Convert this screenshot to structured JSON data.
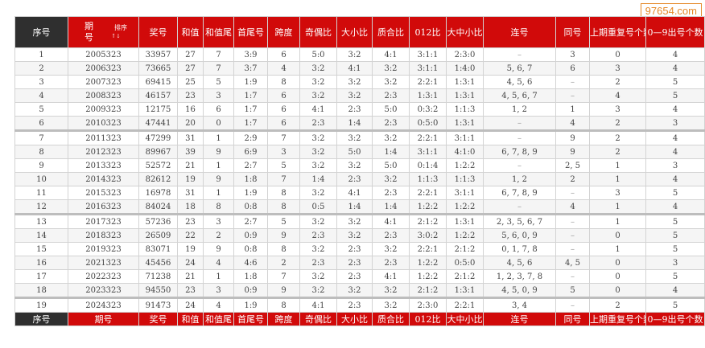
{
  "watermark": "97654.com",
  "headers": {
    "seq": "序号",
    "issue_top": "期",
    "issue_bottom": "号",
    "sort_label": "排序",
    "sort_arrow": "↑↓",
    "number": "奖号",
    "sum": "和值",
    "sum_tail": "和值尾",
    "first_last": "首尾号",
    "span": "跨度",
    "odd_even": "奇偶比",
    "big_small": "大小比",
    "prime_comp": "质合比",
    "ratio012": "012比",
    "big_mid_small": "大中小比",
    "consecutive": "连号",
    "same": "同号",
    "repeat_prev": "上期重复号个数",
    "count_0_9": "0—9出号个数"
  },
  "footers": {
    "seq": "序号",
    "issue": "期号",
    "number": "奖号",
    "sum": "和值",
    "sum_tail": "和值尾",
    "first_last": "首尾号",
    "span": "跨度",
    "odd_even": "奇偶比",
    "big_small": "大小比",
    "prime_comp": "质合比",
    "ratio012": "012比",
    "big_mid_small": "大中小比",
    "consecutive": "连号",
    "same": "同号",
    "repeat_prev": "上期重复号个数",
    "count_0_9": "0—9出号个数"
  },
  "rows": [
    {
      "seq": "1",
      "issue": "2005323",
      "number": "33957",
      "sum": "27",
      "tail": "7",
      "fl": "3:9",
      "span": "6",
      "oe": "5:0",
      "bs": "3:2",
      "pc": "4:1",
      "r012": "3:1:1",
      "bms": "2:3:0",
      "cons": "–",
      "same": "3",
      "rep": "0",
      "cnt": "4"
    },
    {
      "seq": "2",
      "issue": "2006323",
      "number": "73665",
      "sum": "27",
      "tail": "7",
      "fl": "3:7",
      "span": "4",
      "oe": "3:2",
      "bs": "4:1",
      "pc": "3:2",
      "r012": "3:1:1",
      "bms": "1:4:0",
      "cons": "5, 6, 7",
      "same": "6",
      "rep": "3",
      "cnt": "4"
    },
    {
      "seq": "3",
      "issue": "2007323",
      "number": "69415",
      "sum": "25",
      "tail": "5",
      "fl": "1:9",
      "span": "8",
      "oe": "3:2",
      "bs": "3:2",
      "pc": "3:2",
      "r012": "2:2:1",
      "bms": "1:3:1",
      "cons": "4, 5, 6",
      "same": "–",
      "rep": "2",
      "cnt": "5"
    },
    {
      "seq": "4",
      "issue": "2008323",
      "number": "46157",
      "sum": "23",
      "tail": "3",
      "fl": "1:7",
      "span": "6",
      "oe": "3:2",
      "bs": "3:2",
      "pc": "2:3",
      "r012": "1:3:1",
      "bms": "1:3:1",
      "cons": "4, 5, 6, 7",
      "same": "–",
      "rep": "4",
      "cnt": "5"
    },
    {
      "seq": "5",
      "issue": "2009323",
      "number": "12175",
      "sum": "16",
      "tail": "6",
      "fl": "1:7",
      "span": "6",
      "oe": "4:1",
      "bs": "2:3",
      "pc": "5:0",
      "r012": "0:3:2",
      "bms": "1:1:3",
      "cons": "1, 2",
      "same": "1",
      "rep": "3",
      "cnt": "4"
    },
    {
      "seq": "6",
      "issue": "2010323",
      "number": "47441",
      "sum": "20",
      "tail": "0",
      "fl": "1:7",
      "span": "6",
      "oe": "2:3",
      "bs": "1:4",
      "pc": "2:3",
      "r012": "0:5:0",
      "bms": "1:3:1",
      "cons": "–",
      "same": "4",
      "rep": "2",
      "cnt": "3"
    },
    {
      "seq": "7",
      "issue": "2011323",
      "number": "47299",
      "sum": "31",
      "tail": "1",
      "fl": "2:9",
      "span": "7",
      "oe": "3:2",
      "bs": "3:2",
      "pc": "3:2",
      "r012": "2:2:1",
      "bms": "3:1:1",
      "cons": "–",
      "same": "9",
      "rep": "2",
      "cnt": "4",
      "group": true
    },
    {
      "seq": "8",
      "issue": "2012323",
      "number": "89967",
      "sum": "39",
      "tail": "9",
      "fl": "6:9",
      "span": "3",
      "oe": "3:2",
      "bs": "5:0",
      "pc": "1:4",
      "r012": "3:1:1",
      "bms": "4:1:0",
      "cons": "6, 7, 8, 9",
      "same": "9",
      "rep": "2",
      "cnt": "4"
    },
    {
      "seq": "9",
      "issue": "2013323",
      "number": "52572",
      "sum": "21",
      "tail": "1",
      "fl": "2:7",
      "span": "5",
      "oe": "3:2",
      "bs": "3:2",
      "pc": "5:0",
      "r012": "0:1:4",
      "bms": "1:2:2",
      "cons": "–",
      "same": "2, 5",
      "rep": "1",
      "cnt": "3"
    },
    {
      "seq": "10",
      "issue": "2014323",
      "number": "82612",
      "sum": "19",
      "tail": "9",
      "fl": "1:8",
      "span": "7",
      "oe": "1:4",
      "bs": "2:3",
      "pc": "3:2",
      "r012": "1:1:3",
      "bms": "1:1:3",
      "cons": "1, 2",
      "same": "2",
      "rep": "1",
      "cnt": "4"
    },
    {
      "seq": "11",
      "issue": "2015323",
      "number": "16978",
      "sum": "31",
      "tail": "1",
      "fl": "1:9",
      "span": "8",
      "oe": "3:2",
      "bs": "4:1",
      "pc": "2:3",
      "r012": "2:2:1",
      "bms": "3:1:1",
      "cons": "6, 7, 8, 9",
      "same": "–",
      "rep": "3",
      "cnt": "5"
    },
    {
      "seq": "12",
      "issue": "2016323",
      "number": "84024",
      "sum": "18",
      "tail": "8",
      "fl": "0:8",
      "span": "8",
      "oe": "0:5",
      "bs": "1:4",
      "pc": "1:4",
      "r012": "1:2:2",
      "bms": "1:2:2",
      "cons": "–",
      "same": "4",
      "rep": "1",
      "cnt": "4"
    },
    {
      "seq": "13",
      "issue": "2017323",
      "number": "57236",
      "sum": "23",
      "tail": "3",
      "fl": "2:7",
      "span": "5",
      "oe": "3:2",
      "bs": "3:2",
      "pc": "4:1",
      "r012": "2:1:2",
      "bms": "1:3:1",
      "cons": "2, 3, 5, 6, 7",
      "same": "–",
      "rep": "1",
      "cnt": "5",
      "group": true
    },
    {
      "seq": "14",
      "issue": "2018323",
      "number": "26509",
      "sum": "22",
      "tail": "2",
      "fl": "0:9",
      "span": "9",
      "oe": "2:3",
      "bs": "3:2",
      "pc": "2:3",
      "r012": "3:0:2",
      "bms": "1:2:2",
      "cons": "5, 6, 0, 9",
      "same": "–",
      "rep": "0",
      "cnt": "5"
    },
    {
      "seq": "15",
      "issue": "2019323",
      "number": "83071",
      "sum": "19",
      "tail": "9",
      "fl": "0:8",
      "span": "8",
      "oe": "3:2",
      "bs": "2:3",
      "pc": "3:2",
      "r012": "2:2:1",
      "bms": "2:1:2",
      "cons": "0, 1, 7, 8",
      "same": "–",
      "rep": "1",
      "cnt": "5"
    },
    {
      "seq": "16",
      "issue": "2021323",
      "number": "45456",
      "sum": "24",
      "tail": "4",
      "fl": "4:6",
      "span": "2",
      "oe": "2:3",
      "bs": "2:3",
      "pc": "2:3",
      "r012": "1:2:2",
      "bms": "0:5:0",
      "cons": "4, 5, 6",
      "same": "4, 5",
      "rep": "0",
      "cnt": "3"
    },
    {
      "seq": "17",
      "issue": "2022323",
      "number": "71238",
      "sum": "21",
      "tail": "1",
      "fl": "1:8",
      "span": "7",
      "oe": "3:2",
      "bs": "2:3",
      "pc": "4:1",
      "r012": "1:2:2",
      "bms": "2:1:2",
      "cons": "1, 2, 3, 7, 8",
      "same": "–",
      "rep": "0",
      "cnt": "5"
    },
    {
      "seq": "18",
      "issue": "2023323",
      "number": "94550",
      "sum": "23",
      "tail": "3",
      "fl": "0:9",
      "span": "9",
      "oe": "3:2",
      "bs": "3:2",
      "pc": "3:2",
      "r012": "2:1:2",
      "bms": "1:3:1",
      "cons": "4, 5, 0, 9",
      "same": "5",
      "rep": "0",
      "cnt": "4"
    },
    {
      "seq": "19",
      "issue": "2024323",
      "number": "91473",
      "sum": "24",
      "tail": "4",
      "fl": "1:9",
      "span": "8",
      "oe": "4:1",
      "bs": "2:3",
      "pc": "3:2",
      "r012": "2:3:0",
      "bms": "2:2:1",
      "cons": "3, 4",
      "same": "–",
      "rep": "2",
      "cnt": "5",
      "group": true
    }
  ]
}
